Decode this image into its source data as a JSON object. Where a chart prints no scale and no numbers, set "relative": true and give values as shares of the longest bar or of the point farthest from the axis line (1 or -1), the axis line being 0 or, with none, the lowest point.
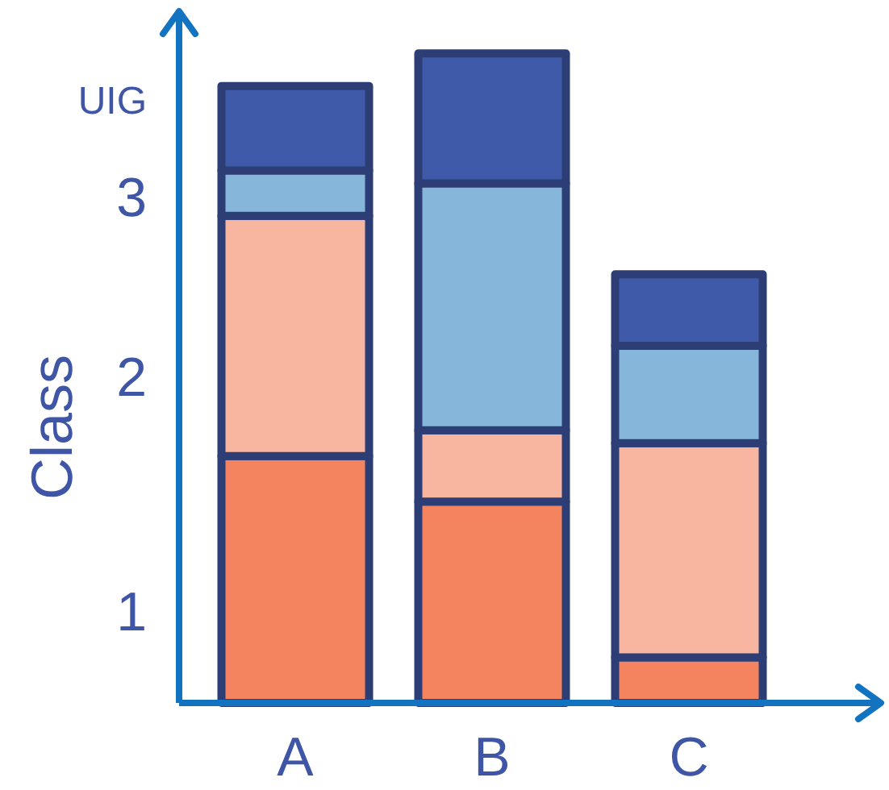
{
  "chart_data": {
    "type": "bar",
    "stacked": true,
    "relative": true,
    "ylabel": "Class",
    "categories": [
      "A",
      "B",
      "C"
    ],
    "series": [
      {
        "color": "#f4845f",
        "values": [
          0.38,
          0.31,
          0.07
        ]
      },
      {
        "color": "#f8b59f",
        "values": [
          0.37,
          0.11,
          0.33
        ]
      },
      {
        "color": "#86b7da",
        "values": [
          0.07,
          0.38,
          0.15
        ]
      },
      {
        "color": "#3f5aa9",
        "values": [
          0.13,
          0.2,
          0.11
        ]
      }
    ],
    "annotations": [
      "1",
      "2",
      "3",
      "UIG"
    ]
  }
}
